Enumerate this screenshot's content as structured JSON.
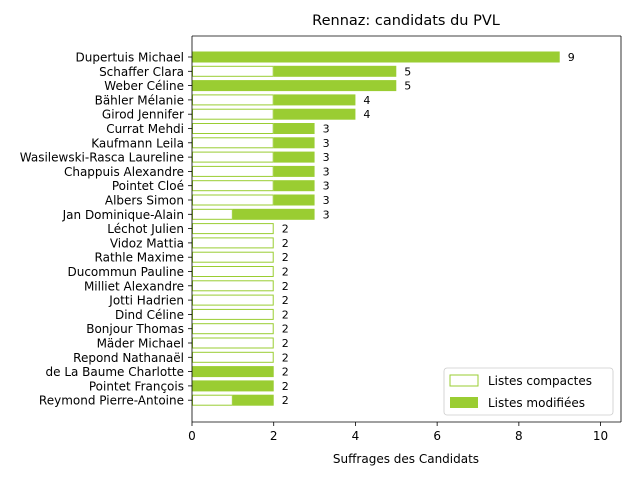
{
  "chart_data": {
    "type": "bar",
    "orientation": "horizontal",
    "stacked": true,
    "title": "Rennaz: candidats du PVL",
    "xlabel": "Suffrages des Candidats",
    "ylabel": "",
    "xlim": [
      0,
      10.5
    ],
    "xticks": [
      0,
      2,
      4,
      6,
      8,
      10
    ],
    "grid": false,
    "legend_position": "lower-right",
    "colors": {
      "modified": "#9acd32",
      "compact_edge": "#9acd32",
      "compact_fill": "#ffffff"
    },
    "categories": [
      "Dupertuis Michael",
      "Schaffer Clara",
      "Weber Céline",
      "Bähler Mélanie",
      "Girod Jennifer",
      "Currat Mehdi",
      "Kaufmann Leila",
      "Wasilewski-Rasca Laureline",
      "Chappuis Alexandre",
      "Pointet Cloé",
      "Albers Simon",
      "Jan Dominique-Alain",
      "Léchot Julien",
      "Vidoz Mattia",
      "Rathle Maxime",
      "Ducommun Pauline",
      "Milliet Alexandre",
      "Jotti Hadrien",
      "Dind Céline",
      "Bonjour Thomas",
      "Mäder Michael",
      "Repond Nathanaël",
      "de La Baume Charlotte",
      "Pointet François",
      "Reymond Pierre-Antoine"
    ],
    "series": [
      {
        "name": "Listes compactes",
        "values": [
          0,
          2,
          0,
          2,
          2,
          2,
          2,
          2,
          2,
          2,
          2,
          1,
          2,
          2,
          2,
          2,
          2,
          2,
          2,
          2,
          2,
          2,
          0,
          0,
          1
        ]
      },
      {
        "name": "Listes modifiées",
        "values": [
          9,
          3,
          5,
          2,
          2,
          1,
          1,
          1,
          1,
          1,
          1,
          2,
          0,
          0,
          0,
          0,
          0,
          0,
          0,
          0,
          0,
          0,
          2,
          2,
          1
        ]
      }
    ],
    "totals": [
      9,
      5,
      5,
      4,
      4,
      3,
      3,
      3,
      3,
      3,
      3,
      3,
      2,
      2,
      2,
      2,
      2,
      2,
      2,
      2,
      2,
      2,
      2,
      2,
      2
    ]
  }
}
